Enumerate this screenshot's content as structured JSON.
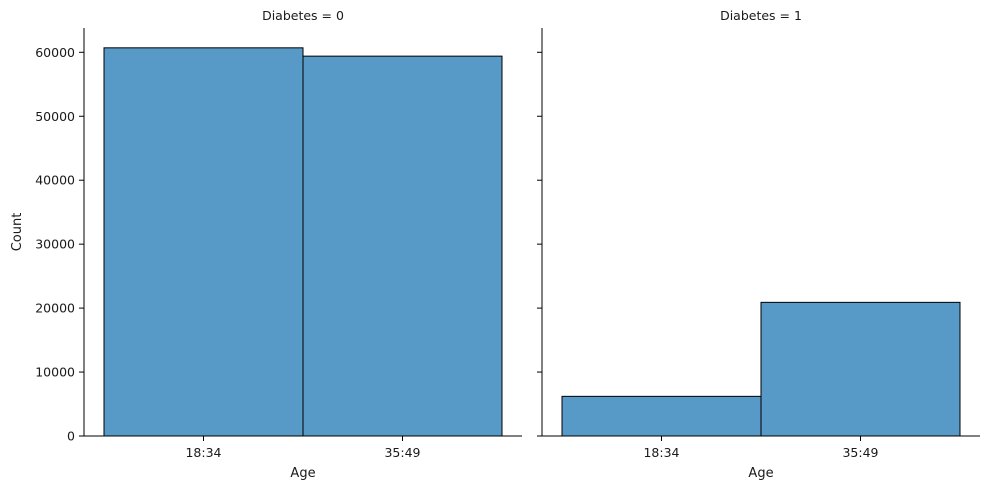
{
  "chart_data": {
    "type": "bar",
    "xlabel": "Age",
    "ylabel": "Count",
    "ylim": [
      0,
      63800
    ],
    "yticks": [
      0,
      10000,
      20000,
      30000,
      40000,
      50000,
      60000
    ],
    "grid": false,
    "bar_color": "#5799c7",
    "edge_color": "#000000",
    "facets": [
      {
        "title": "Diabetes = 0",
        "categories": [
          "18:34",
          "35:49"
        ],
        "values": [
          60700,
          59400
        ]
      },
      {
        "title": "Diabetes = 1",
        "categories": [
          "18:34",
          "35:49"
        ],
        "values": [
          6200,
          20900
        ]
      }
    ]
  }
}
